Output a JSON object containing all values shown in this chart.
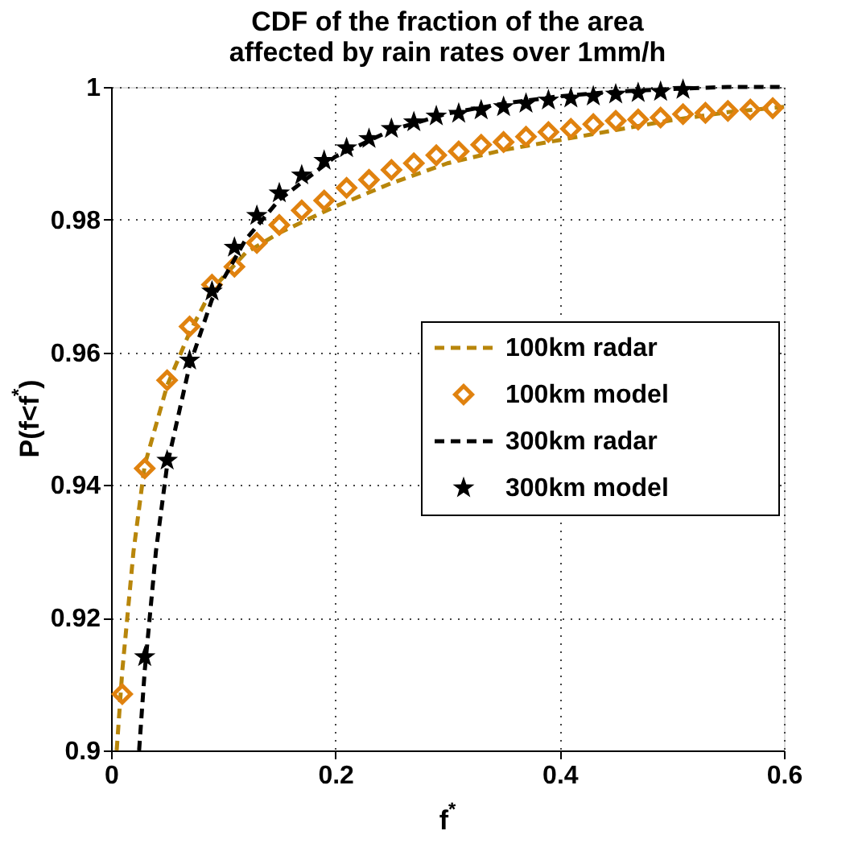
{
  "chart_data": {
    "type": "line",
    "title": "CDF of the fraction of the area\naffected by rain rates over 1mm/h",
    "xlabel": "f$^{*}$",
    "ylabel": "P(f<f$^{*}$)",
    "xlim": [
      0,
      0.6
    ],
    "xticks": [
      0,
      0.2,
      0.4,
      0.6
    ],
    "ylim": [
      0.9,
      1
    ],
    "yticks": [
      0.9,
      0.92,
      0.94,
      0.96,
      0.98,
      1
    ],
    "grid": true,
    "legend": "right",
    "series": [
      {
        "name": "100km radar",
        "type": "line",
        "line_style": "dashed",
        "color": "#b8860b",
        "x": [
          0.005,
          0.01,
          0.02,
          0.03,
          0.05,
          0.07,
          0.09,
          0.12,
          0.15,
          0.2,
          0.25,
          0.3,
          0.35,
          0.4,
          0.45,
          0.5,
          0.55,
          0.6
        ],
        "values": [
          0.9,
          0.912,
          0.93,
          0.943,
          0.955,
          0.963,
          0.9695,
          0.975,
          0.978,
          0.982,
          0.9855,
          0.9885,
          0.9905,
          0.992,
          0.9935,
          0.995,
          0.9962,
          0.997
        ]
      },
      {
        "name": "100km model",
        "type": "scatter",
        "marker": "diamond",
        "color": "#e0820f",
        "x": [
          0.01,
          0.03,
          0.05,
          0.07,
          0.09,
          0.11,
          0.13,
          0.15,
          0.17,
          0.19,
          0.21,
          0.23,
          0.25,
          0.27,
          0.29,
          0.31,
          0.33,
          0.35,
          0.37,
          0.39,
          0.41,
          0.43,
          0.45,
          0.47,
          0.49,
          0.51,
          0.53,
          0.55,
          0.57,
          0.59
        ],
        "values": [
          0.9085,
          0.9425,
          0.9558,
          0.9639,
          0.9702,
          0.9729,
          0.9765,
          0.9792,
          0.9814,
          0.9829,
          0.9848,
          0.986,
          0.9875,
          0.9885,
          0.9897,
          0.9903,
          0.9913,
          0.9917,
          0.9925,
          0.9932,
          0.9937,
          0.9944,
          0.9949,
          0.9951,
          0.9954,
          0.9959,
          0.9961,
          0.9964,
          0.9966,
          0.9968
        ]
      },
      {
        "name": "300km radar",
        "type": "line",
        "line_style": "dashed",
        "color": "#000000",
        "x": [
          0.025,
          0.03,
          0.04,
          0.05,
          0.07,
          0.09,
          0.12,
          0.15,
          0.2,
          0.25,
          0.3,
          0.35,
          0.4,
          0.45,
          0.5,
          0.55,
          0.6
        ],
        "values": [
          0.9,
          0.912,
          0.93,
          0.943,
          0.958,
          0.968,
          0.977,
          0.983,
          0.9895,
          0.9935,
          0.996,
          0.9975,
          0.9986,
          0.9993,
          0.9997,
          1.0,
          1.0
        ]
      },
      {
        "name": "300km model",
        "type": "scatter",
        "marker": "star",
        "color": "#000000",
        "x": [
          0.03,
          0.05,
          0.07,
          0.09,
          0.11,
          0.13,
          0.15,
          0.17,
          0.19,
          0.21,
          0.23,
          0.25,
          0.27,
          0.29,
          0.31,
          0.33,
          0.35,
          0.37,
          0.39,
          0.41,
          0.43,
          0.45,
          0.47,
          0.49,
          0.51
        ],
        "values": [
          0.9141,
          0.9437,
          0.9588,
          0.9692,
          0.9758,
          0.9806,
          0.984,
          0.9867,
          0.9889,
          0.9908,
          0.9922,
          0.9937,
          0.9947,
          0.9956,
          0.996,
          0.9965,
          0.997,
          0.9975,
          0.998,
          0.9983,
          0.9986,
          0.9989,
          0.9991,
          0.9993,
          0.9996
        ]
      }
    ]
  }
}
